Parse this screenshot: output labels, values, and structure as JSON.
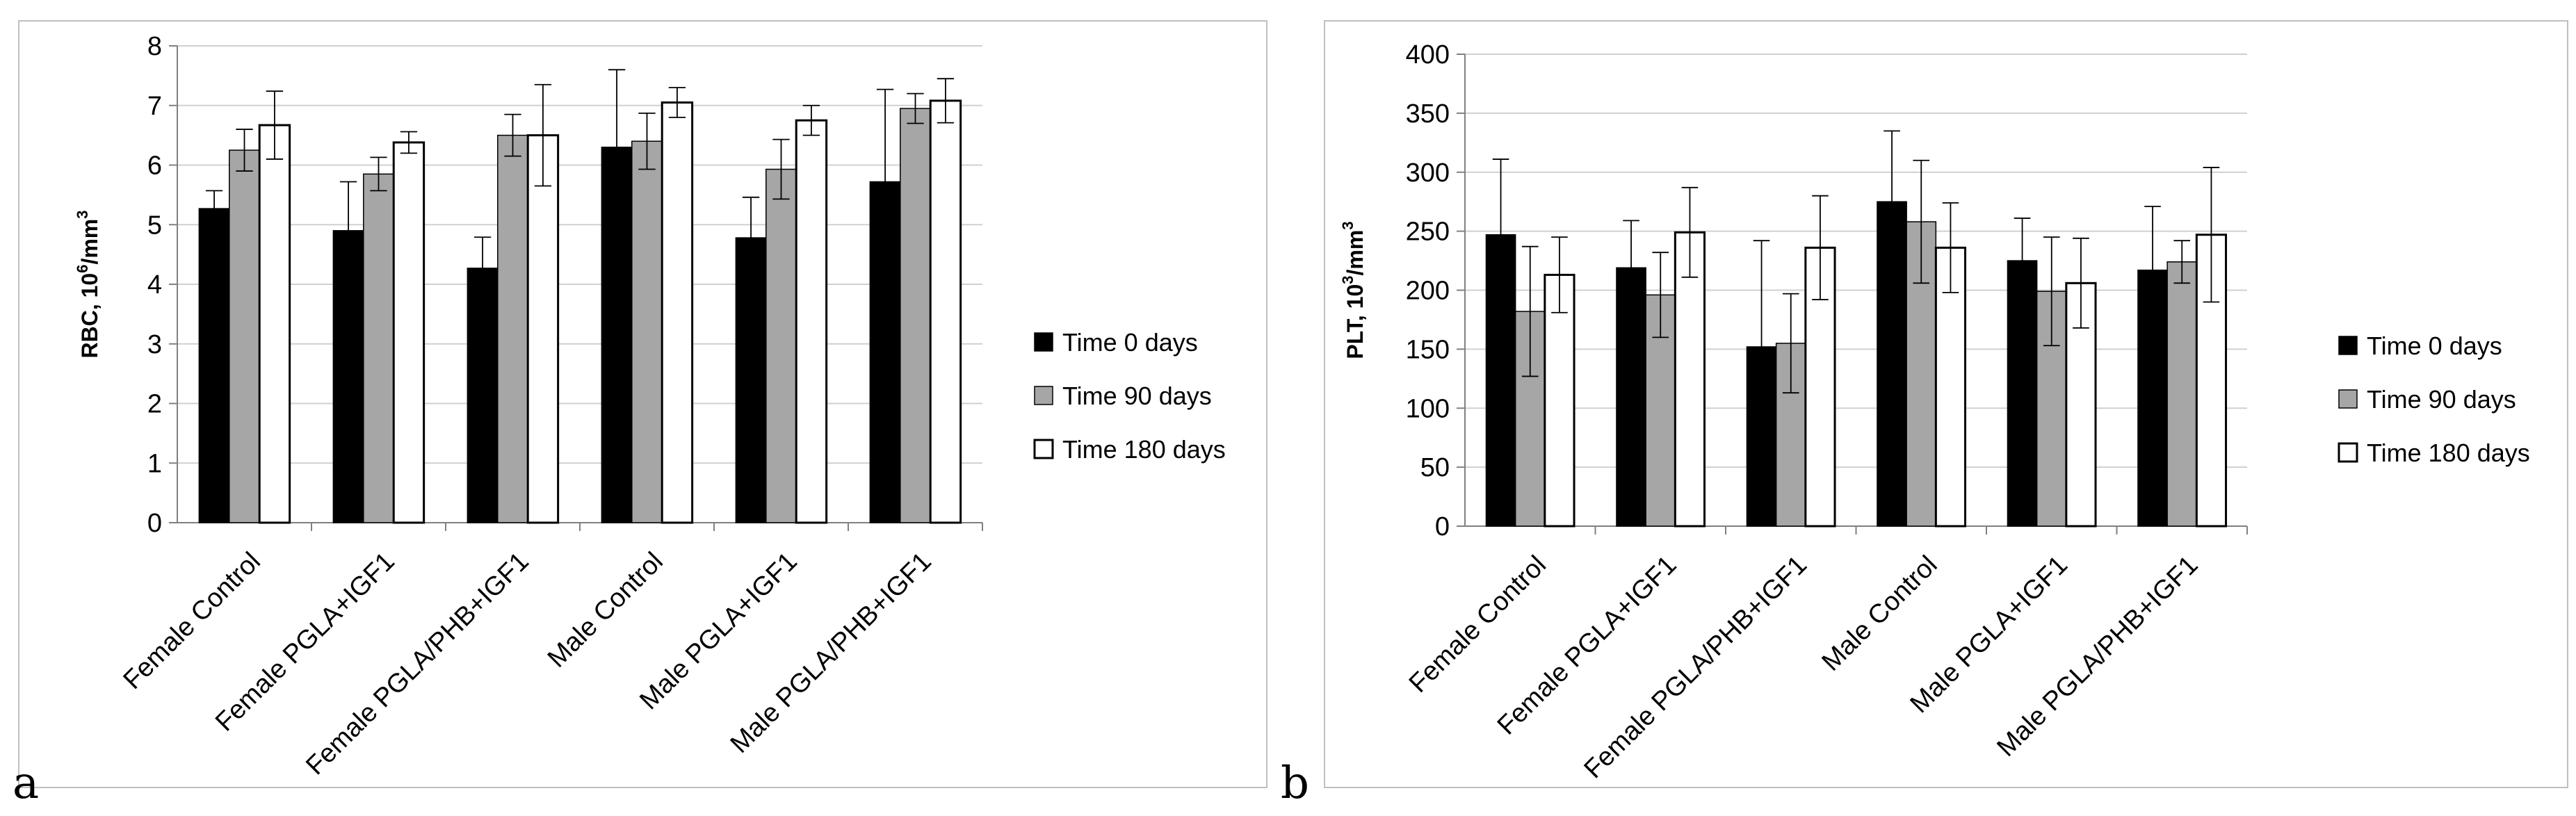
{
  "panels": {
    "a": {
      "letter": "a"
    },
    "b": {
      "letter": "b"
    }
  },
  "colors": {
    "time0": "#000000",
    "time90": "#a6a6a6",
    "time180": "#ffffff",
    "grid": "#d0d0d0",
    "frame": "#bfbfbf"
  },
  "chart_data": [
    {
      "type": "bar",
      "panel": "a",
      "title": "",
      "xlabel": "",
      "ylabel": "RBC, 10^6/mm^3",
      "ylabel_main": "RBC, 10",
      "ylabel_exp": "6",
      "ylabel_unit": "/mm",
      "ylabel_unit_exp": "3",
      "ylim": [
        0,
        8
      ],
      "yticks": [
        0,
        1,
        2,
        3,
        4,
        5,
        6,
        7,
        8
      ],
      "grid": true,
      "legend_position": "right",
      "categories": [
        "Female Control",
        "Female PGLA+IGF1",
        "Female PGLA/PHB+IGF1",
        "Male Control",
        "Male PGLA+IGF1",
        "Male PGLA/PHB+IGF1"
      ],
      "series": [
        {
          "name": "Time 0 days",
          "key": "time0",
          "values": [
            5.27,
            4.9,
            4.27,
            6.3,
            4.78,
            5.72
          ],
          "err": [
            0.3,
            0.82,
            0.52,
            1.3,
            0.68,
            1.55
          ]
        },
        {
          "name": "Time 90 days",
          "key": "time90",
          "values": [
            6.25,
            5.85,
            6.5,
            6.4,
            5.93,
            6.95
          ],
          "err": [
            0.35,
            0.28,
            0.35,
            0.47,
            0.5,
            0.25
          ]
        },
        {
          "name": "Time 180 days",
          "key": "time180",
          "values": [
            6.67,
            6.38,
            6.5,
            7.05,
            6.75,
            7.08
          ],
          "err": [
            0.57,
            0.18,
            0.85,
            0.25,
            0.25,
            0.37
          ]
        }
      ]
    },
    {
      "type": "bar",
      "panel": "b",
      "title": "",
      "xlabel": "",
      "ylabel": "PLT, 10^3/mm^3",
      "ylabel_main": "PLT, 10",
      "ylabel_exp": "3",
      "ylabel_unit": "/mm",
      "ylabel_unit_exp": "3",
      "ylim": [
        0,
        400
      ],
      "yticks": [
        0,
        50,
        100,
        150,
        200,
        250,
        300,
        350,
        400
      ],
      "grid": true,
      "legend_position": "right",
      "categories": [
        "Female Control",
        "Female PGLA+IGF1",
        "Female PGLA/PHB+IGF1",
        "Male Control",
        "Male PGLA+IGF1",
        "Male PGLA/PHB+IGF1"
      ],
      "series": [
        {
          "name": "Time 0 days",
          "key": "time0",
          "values": [
            247,
            219,
            152,
            275,
            225,
            217
          ],
          "err": [
            64,
            40,
            90,
            60,
            36,
            54
          ]
        },
        {
          "name": "Time 90 days",
          "key": "time90",
          "values": [
            182,
            196,
            155,
            258,
            199,
            224
          ],
          "err": [
            55,
            36,
            42,
            52,
            46,
            18
          ]
        },
        {
          "name": "Time 180 days",
          "key": "time180",
          "values": [
            213,
            249,
            236,
            236,
            206,
            247
          ],
          "err": [
            32,
            38,
            44,
            38,
            38,
            57
          ]
        }
      ]
    }
  ]
}
